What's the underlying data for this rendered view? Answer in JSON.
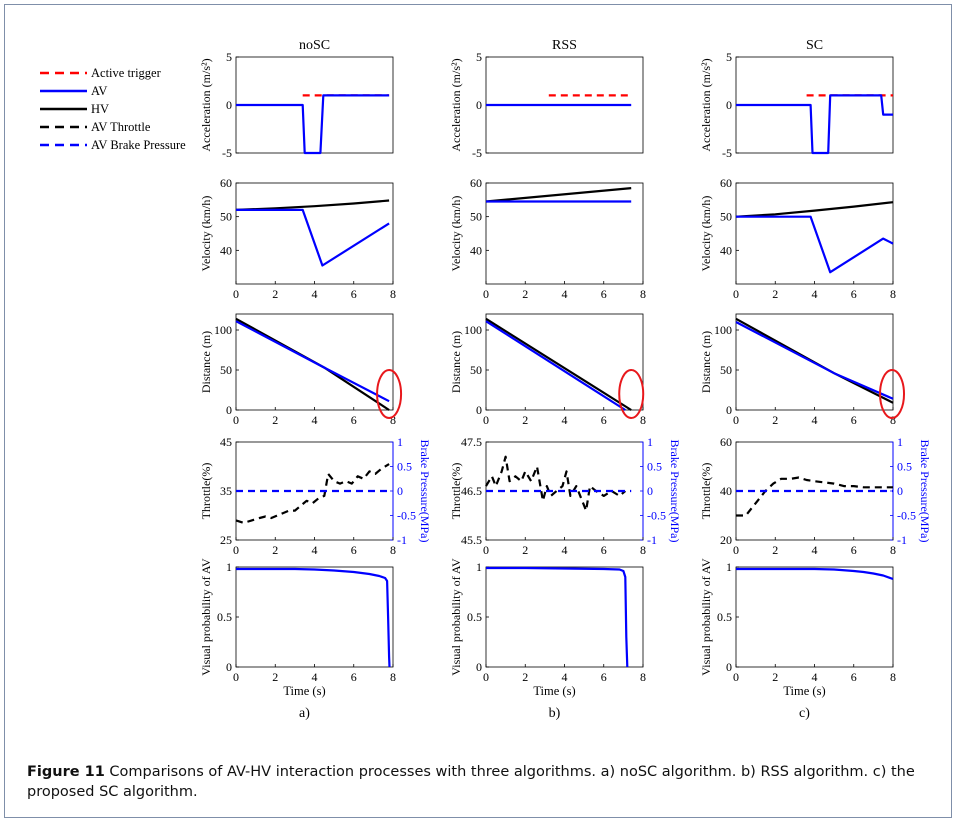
{
  "caption": {
    "label": "Figure 11",
    "text": "Comparisons of AV-HV interaction processes with three algorithms. a) noSC algorithm. b) RSS algorithm. c) the proposed SC algorithm."
  },
  "legend": {
    "items": [
      {
        "label": "Active trigger",
        "color": "#ff0000",
        "dash": true
      },
      {
        "label": "AV",
        "color": "#0000ff",
        "dash": false
      },
      {
        "label": "HV",
        "color": "#000000",
        "dash": false
      },
      {
        "label": "AV Throttle",
        "color": "#000000",
        "dash": true
      },
      {
        "label": "AV Brake Pressure",
        "color": "#0000ff",
        "dash": true
      }
    ]
  },
  "xlabel": "Time (s)",
  "columns": [
    {
      "title": "noSC",
      "sublabel": "a)"
    },
    {
      "title": "RSS",
      "sublabel": "b)"
    },
    {
      "title": "SC",
      "sublabel": "c)"
    }
  ],
  "colors": {
    "av": "#0000ff",
    "hv": "#000000",
    "trigger": "#ff0000",
    "circle": "#e8181c"
  },
  "chart_data": [
    {
      "type": "line",
      "column": "noSC",
      "row": "acceleration",
      "ylabel": "Acceleration (m/s²)",
      "xlim": [
        0,
        8
      ],
      "ylim": [
        -5,
        5
      ],
      "xticks": [],
      "yticks": [
        "-5",
        "0",
        "5"
      ],
      "series": [
        {
          "name": "Active trigger",
          "x": [
            3.4,
            7.8
          ],
          "y": [
            1,
            1
          ],
          "dashed": true,
          "color": "#ff0000"
        },
        {
          "name": "AV",
          "x": [
            0,
            3.4,
            3.5,
            4.3,
            4.45,
            7.8
          ],
          "y": [
            0,
            0,
            -5,
            -5,
            1,
            1
          ],
          "color": "#0000ff"
        }
      ]
    },
    {
      "type": "line",
      "column": "RSS",
      "row": "acceleration",
      "ylabel": "Acceleration (m/s²)",
      "xlim": [
        0,
        8
      ],
      "ylim": [
        -5,
        5
      ],
      "xticks": [],
      "yticks": [
        "-5",
        "0",
        "5"
      ],
      "series": [
        {
          "name": "Active trigger",
          "x": [
            3.2,
            7.4
          ],
          "y": [
            1,
            1
          ],
          "dashed": true,
          "color": "#ff0000"
        },
        {
          "name": "AV",
          "x": [
            0,
            7.4
          ],
          "y": [
            0,
            0
          ],
          "color": "#0000ff"
        }
      ]
    },
    {
      "type": "line",
      "column": "SC",
      "row": "acceleration",
      "ylabel": "Acceleration (m/s²)",
      "xlim": [
        0,
        8
      ],
      "ylim": [
        -5,
        5
      ],
      "xticks": [],
      "yticks": [
        "-5",
        "0",
        "5"
      ],
      "series": [
        {
          "name": "Active trigger",
          "x": [
            3.6,
            8
          ],
          "y": [
            1,
            1
          ],
          "dashed": true,
          "color": "#ff0000"
        },
        {
          "name": "AV",
          "x": [
            0,
            3.8,
            3.9,
            4.7,
            4.8,
            7.4,
            7.5,
            8
          ],
          "y": [
            0,
            0,
            -5,
            -5,
            1,
            1,
            -1,
            -1
          ],
          "color": "#0000ff"
        }
      ]
    },
    {
      "type": "line",
      "column": "noSC",
      "row": "velocity",
      "ylabel": "Velocity (km/h)",
      "xlim": [
        0,
        8
      ],
      "ylim": [
        30,
        60
      ],
      "xticks": [
        "0",
        "2",
        "4",
        "6",
        "8"
      ],
      "yticks": [
        "40",
        "50",
        "60"
      ],
      "series": [
        {
          "name": "HV",
          "x": [
            0,
            2,
            4,
            6,
            7.8
          ],
          "y": [
            52,
            52.5,
            53.1,
            53.9,
            54.8
          ],
          "color": "#000000"
        },
        {
          "name": "AV",
          "x": [
            0,
            3.4,
            4.4,
            7.8
          ],
          "y": [
            52,
            52,
            35.5,
            48
          ],
          "color": "#0000ff"
        }
      ]
    },
    {
      "type": "line",
      "column": "RSS",
      "row": "velocity",
      "ylabel": "Velocity (km/h)",
      "xlim": [
        0,
        8
      ],
      "ylim": [
        30,
        60
      ],
      "xticks": [
        "0",
        "2",
        "4",
        "6",
        "8"
      ],
      "yticks": [
        "40",
        "50",
        "60"
      ],
      "series": [
        {
          "name": "HV",
          "x": [
            0,
            7.4
          ],
          "y": [
            54.5,
            58.5
          ],
          "color": "#000000"
        },
        {
          "name": "AV",
          "x": [
            0,
            7.4
          ],
          "y": [
            54.5,
            54.5
          ],
          "color": "#0000ff"
        }
      ]
    },
    {
      "type": "line",
      "column": "SC",
      "row": "velocity",
      "ylabel": "Velocity (km/h)",
      "xlim": [
        0,
        8
      ],
      "ylim": [
        30,
        60
      ],
      "xticks": [
        "0",
        "2",
        "4",
        "6",
        "8"
      ],
      "yticks": [
        "40",
        "50",
        "60"
      ],
      "series": [
        {
          "name": "HV",
          "x": [
            0,
            2,
            4,
            6,
            8
          ],
          "y": [
            50,
            50.7,
            51.8,
            53,
            54.3
          ],
          "color": "#000000"
        },
        {
          "name": "AV",
          "x": [
            0,
            3.8,
            4.8,
            7.5,
            8
          ],
          "y": [
            50,
            50,
            33.5,
            43.5,
            42
          ],
          "color": "#0000ff"
        }
      ]
    },
    {
      "type": "line",
      "column": "noSC",
      "row": "distance",
      "ylabel": "Distance (m)",
      "xlim": [
        0,
        8
      ],
      "ylim": [
        0,
        120
      ],
      "xticks": [
        "0",
        "2",
        "4",
        "6",
        "8"
      ],
      "yticks": [
        "0",
        "50",
        "100"
      ],
      "series": [
        {
          "name": "HV",
          "x": [
            0,
            4.5,
            7.8
          ],
          "y": [
            114,
            53,
            0
          ],
          "color": "#000000"
        },
        {
          "name": "AV",
          "x": [
            0,
            4.5,
            7.8
          ],
          "y": [
            111,
            53,
            11
          ],
          "color": "#0000ff"
        }
      ],
      "annotation": {
        "type": "circle",
        "x": 7.8,
        "y": 5
      }
    },
    {
      "type": "line",
      "column": "RSS",
      "row": "distance",
      "ylabel": "Distance (m)",
      "xlim": [
        0,
        8
      ],
      "ylim": [
        0,
        120
      ],
      "xticks": [
        "0",
        "2",
        "4",
        "6",
        "8"
      ],
      "yticks": [
        "0",
        "50",
        "100"
      ],
      "series": [
        {
          "name": "HV",
          "x": [
            0,
            7.4
          ],
          "y": [
            114,
            0
          ],
          "color": "#000000"
        },
        {
          "name": "AV",
          "x": [
            0,
            7.1
          ],
          "y": [
            111,
            0
          ],
          "color": "#0000ff"
        }
      ],
      "annotation": {
        "type": "circle",
        "x": 7.4,
        "y": 5
      }
    },
    {
      "type": "line",
      "column": "SC",
      "row": "distance",
      "ylabel": "Distance (m)",
      "xlim": [
        0,
        8
      ],
      "ylim": [
        0,
        120
      ],
      "xticks": [
        "0",
        "2",
        "4",
        "6",
        "8"
      ],
      "yticks": [
        "0",
        "50",
        "100"
      ],
      "series": [
        {
          "name": "HV",
          "x": [
            0,
            5,
            8
          ],
          "y": [
            114,
            46,
            9
          ],
          "color": "#000000"
        },
        {
          "name": "AV",
          "x": [
            0,
            5,
            8
          ],
          "y": [
            110,
            46,
            14
          ],
          "color": "#0000ff"
        }
      ],
      "annotation": {
        "type": "circle",
        "x": 7.95,
        "y": 5
      }
    },
    {
      "type": "line",
      "column": "noSC",
      "row": "throttle",
      "ylabel": "Throttle(%)",
      "y2label": "Brake Pressure(MPa)",
      "xlim": [
        0,
        8
      ],
      "ylim": [
        25,
        45
      ],
      "y2lim": [
        -1,
        1
      ],
      "xticks": [
        "0",
        "2",
        "4",
        "6",
        "8"
      ],
      "yticks": [
        "25",
        "35",
        "45"
      ],
      "y2ticks": [
        "-1",
        "-0.5",
        "0",
        "0.5",
        "1"
      ],
      "series": [
        {
          "name": "AV Throttle",
          "axis": "left",
          "dashed": true,
          "color": "#000000",
          "x": [
            0,
            0.4,
            0.8,
            1.2,
            1.5,
            1.8,
            2.1,
            2.4,
            2.7,
            3.0,
            3.3,
            3.6,
            3.9,
            4.2,
            4.5,
            4.7,
            5.0,
            5.3,
            5.6,
            5.9,
            6.2,
            6.5,
            6.8,
            7.1,
            7.4,
            7.8
          ],
          "y": [
            29,
            28.5,
            29,
            29.5,
            29.8,
            29.5,
            30,
            30.5,
            31,
            31,
            32,
            33,
            32.5,
            33.5,
            34,
            38.5,
            37,
            36.5,
            37,
            36.5,
            38,
            37.5,
            39,
            38.5,
            39.5,
            40.5
          ]
        },
        {
          "name": "AV Brake Pressure",
          "axis": "right",
          "dashed": true,
          "color": "#0000ff",
          "x": [
            0,
            7.8
          ],
          "y": [
            0,
            0
          ]
        }
      ]
    },
    {
      "type": "line",
      "column": "RSS",
      "row": "throttle",
      "ylabel": "Throttle(%)",
      "y2label": "Brake Pressure(MPa)",
      "xlim": [
        0,
        8
      ],
      "ylim": [
        45.5,
        47.5
      ],
      "y2lim": [
        -1,
        1
      ],
      "xticks": [
        "0",
        "2",
        "4",
        "6",
        "8"
      ],
      "yticks": [
        "45.5",
        "46.5",
        "47.5"
      ],
      "y2ticks": [
        "-1",
        "-0.5",
        "0",
        "0.5",
        "1"
      ],
      "series": [
        {
          "name": "AV Throttle",
          "axis": "left",
          "dashed": true,
          "color": "#000000",
          "x": [
            0,
            0.3,
            0.5,
            0.8,
            1.0,
            1.2,
            1.5,
            1.8,
            2.0,
            2.3,
            2.6,
            2.9,
            3.1,
            3.3,
            3.6,
            3.9,
            4.1,
            4.3,
            4.6,
            4.9,
            5.1,
            5.3,
            5.6,
            6.0,
            6.4,
            6.8,
            7.1
          ],
          "y": [
            46.6,
            46.8,
            46.6,
            46.9,
            47.2,
            46.7,
            46.8,
            46.7,
            46.9,
            46.7,
            47.0,
            46.3,
            46.6,
            46.4,
            46.5,
            46.6,
            46.9,
            46.4,
            46.6,
            46.3,
            46.1,
            46.6,
            46.5,
            46.4,
            46.5,
            46.4,
            46.5
          ]
        },
        {
          "name": "AV Brake Pressure",
          "axis": "right",
          "dashed": true,
          "color": "#0000ff",
          "x": [
            0,
            7.4
          ],
          "y": [
            0,
            0
          ]
        }
      ]
    },
    {
      "type": "line",
      "column": "SC",
      "row": "throttle",
      "ylabel": "Throttle(%)",
      "y2label": "Brake Pressure(MPa)",
      "xlim": [
        0,
        8
      ],
      "ylim": [
        20,
        60
      ],
      "y2lim": [
        -1,
        1
      ],
      "xticks": [
        "0",
        "2",
        "4",
        "6",
        "8"
      ],
      "yticks": [
        "20",
        "40",
        "60"
      ],
      "y2ticks": [
        "-1",
        "-0.5",
        "0",
        "0.5",
        "1"
      ],
      "series": [
        {
          "name": "AV Throttle",
          "axis": "left",
          "dashed": true,
          "color": "#000000",
          "x": [
            0,
            0.5,
            0.8,
            1.1,
            1.5,
            1.9,
            2.3,
            2.8,
            3.2,
            3.6,
            4.0,
            4.5,
            5.0,
            5.5,
            6.0,
            6.5,
            7.0,
            7.5,
            8.0
          ],
          "y": [
            30,
            30,
            33,
            36,
            40,
            43,
            45,
            45,
            45.5,
            44.5,
            44,
            43.5,
            43,
            42,
            42,
            41.5,
            41.5,
            41.5,
            41.5
          ]
        },
        {
          "name": "AV Brake Pressure",
          "axis": "right",
          "dashed": true,
          "color": "#0000ff",
          "x": [
            0,
            8
          ],
          "y": [
            0,
            0
          ]
        }
      ]
    },
    {
      "type": "line",
      "column": "noSC",
      "row": "visual",
      "ylabel": "Visual probability of AV",
      "xlim": [
        0,
        8
      ],
      "ylim": [
        0,
        1
      ],
      "xticks": [
        "0",
        "2",
        "4",
        "6",
        "8"
      ],
      "yticks": [
        "0",
        "0.5",
        "1"
      ],
      "series": [
        {
          "name": "AV",
          "color": "#0000ff",
          "x": [
            0,
            2,
            3,
            4,
            5,
            6,
            6.8,
            7.3,
            7.6,
            7.7,
            7.75,
            7.8,
            7.82
          ],
          "y": [
            0.98,
            0.98,
            0.98,
            0.975,
            0.965,
            0.95,
            0.93,
            0.91,
            0.89,
            0.86,
            0.5,
            0.1,
            0
          ]
        }
      ]
    },
    {
      "type": "line",
      "column": "RSS",
      "row": "visual",
      "ylabel": "Visual probability of AV",
      "xlim": [
        0,
        8
      ],
      "ylim": [
        0,
        1
      ],
      "xticks": [
        "0",
        "2",
        "4",
        "6",
        "8"
      ],
      "yticks": [
        "0",
        "0.5",
        "1"
      ],
      "series": [
        {
          "name": "AV",
          "color": "#0000ff",
          "x": [
            0,
            2,
            4,
            6,
            6.8,
            7.0,
            7.1,
            7.15,
            7.2
          ],
          "y": [
            0.99,
            0.99,
            0.985,
            0.98,
            0.975,
            0.96,
            0.9,
            0.3,
            0
          ]
        }
      ]
    },
    {
      "type": "line",
      "column": "SC",
      "row": "visual",
      "ylabel": "Visual probability of AV",
      "xlim": [
        0,
        8
      ],
      "ylim": [
        0,
        1
      ],
      "xticks": [
        "0",
        "2",
        "4",
        "6",
        "8"
      ],
      "yticks": [
        "0",
        "0.5",
        "1"
      ],
      "series": [
        {
          "name": "AV",
          "color": "#0000ff",
          "x": [
            0,
            2,
            4,
            5,
            6,
            6.5,
            7,
            7.5,
            8
          ],
          "y": [
            0.98,
            0.98,
            0.98,
            0.975,
            0.96,
            0.95,
            0.935,
            0.915,
            0.88
          ]
        }
      ]
    }
  ]
}
